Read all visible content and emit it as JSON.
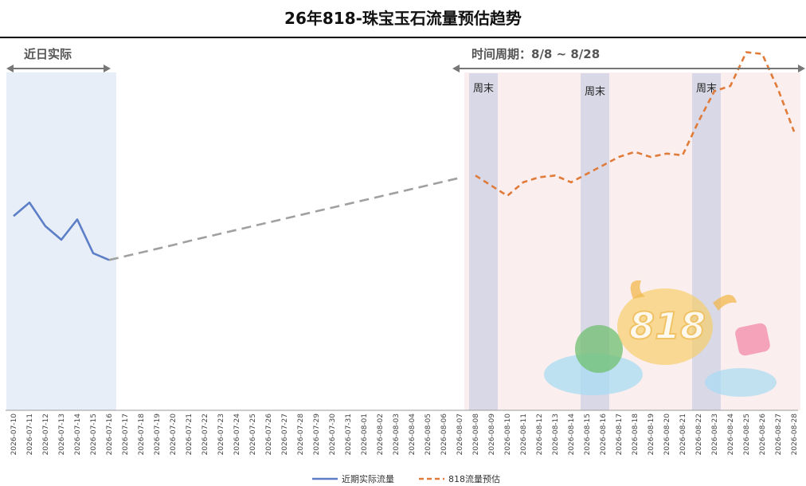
{
  "chart_data": {
    "type": "line",
    "title": "26年818-珠宝玉石流量预估趋势",
    "x": [
      "2026-07-10",
      "2026-07-11",
      "2026-07-12",
      "2026-07-13",
      "2026-07-14",
      "2026-07-15",
      "2026-07-16",
      "2026-07-17",
      "2026-07-18",
      "2026-07-19",
      "2026-07-20",
      "2026-07-21",
      "2026-07-22",
      "2026-07-23",
      "2026-07-24",
      "2026-07-25",
      "2026-07-26",
      "2026-07-27",
      "2026-07-28",
      "2026-07-29",
      "2026-07-30",
      "2026-07-31",
      "2026-08-01",
      "2026-08-02",
      "2026-08-03",
      "2026-08-04",
      "2026-08-05",
      "2026-08-06",
      "2026-08-07",
      "2026-08-08",
      "2026-08-09",
      "2026-08-10",
      "2026-08-11",
      "2026-08-12",
      "2026-08-13",
      "2026-08-14",
      "2026-08-15",
      "2026-08-16",
      "2026-08-17",
      "2026-08-18",
      "2026-08-19",
      "2026-08-20",
      "2026-08-21",
      "2026-08-22",
      "2026-08-23",
      "2026-08-24",
      "2026-08-25",
      "2026-08-26",
      "2026-08-27",
      "2026-08-28"
    ],
    "ylim": [
      0,
      100
    ],
    "series": [
      {
        "name": "近期实际流量",
        "color": "#5b7ec6",
        "style": "solid",
        "values": [
          57.5,
          61.5,
          54.5,
          50.5,
          56.5,
          46.5,
          44.5,
          null,
          null,
          null,
          null,
          null,
          null,
          null,
          null,
          null,
          null,
          null,
          null,
          null,
          null,
          null,
          null,
          null,
          null,
          null,
          null,
          null,
          null,
          null,
          null,
          null,
          null,
          null,
          null,
          null,
          null,
          null,
          null,
          null,
          null,
          null,
          null,
          null,
          null,
          null,
          null,
          null,
          null,
          null
        ]
      },
      {
        "name": "",
        "color": "#a0a0a0",
        "style": "dashed",
        "values": [
          null,
          null,
          null,
          null,
          null,
          null,
          44.5,
          45.6,
          46.7,
          47.8,
          48.9,
          50.1,
          51.2,
          52.3,
          53.4,
          54.5,
          55.6,
          56.7,
          57.8,
          58.9,
          60.0,
          61.1,
          62.2,
          63.3,
          64.4,
          65.5,
          66.6,
          67.7,
          68.8,
          null,
          null,
          null,
          null,
          null,
          null,
          null,
          null,
          null,
          null,
          null,
          null,
          null,
          null,
          null,
          null,
          null,
          null,
          null,
          null,
          null
        ]
      },
      {
        "name": "818流量预估",
        "color": "#e07b39",
        "style": "dashed",
        "values": [
          null,
          null,
          null,
          null,
          null,
          null,
          null,
          null,
          null,
          null,
          null,
          null,
          null,
          null,
          null,
          null,
          null,
          null,
          null,
          null,
          null,
          null,
          null,
          null,
          null,
          null,
          null,
          null,
          null,
          69.5,
          66.5,
          63.5,
          67.5,
          69.0,
          69.5,
          67.5,
          70.0,
          72.5,
          75.0,
          76.5,
          75.0,
          76.0,
          75.5,
          85.5,
          94.5,
          96.0,
          106.0,
          105.5,
          95.0,
          82.5
        ]
      }
    ],
    "annotations": {
      "recent_label": "近日实际",
      "period_label": "时间周期：8/8 ~ 8/28",
      "weekend_label": "周末",
      "weekends": [
        [
          "2026-08-08",
          "2026-08-09"
        ],
        [
          "2026-08-15",
          "2026-08-16"
        ],
        [
          "2026-08-22",
          "2026-08-23"
        ]
      ],
      "recent_range": [
        "2026-07-10",
        "2026-07-16"
      ],
      "period_range": [
        "2026-08-07",
        "2026-08-28"
      ]
    },
    "legend": {
      "position": "bottom",
      "items": [
        {
          "label": "近期实际流量",
          "color": "#5b7ec6",
          "style": "solid"
        },
        {
          "label": "818流量预估",
          "color": "#e07b39",
          "style": "dashed"
        }
      ]
    },
    "colors": {
      "recent_band": "#e8eef8",
      "period_band": "#fbeeee",
      "weekend_band": "#d8d8e6",
      "arrow": "#777777",
      "title_rule": "#000000"
    }
  }
}
